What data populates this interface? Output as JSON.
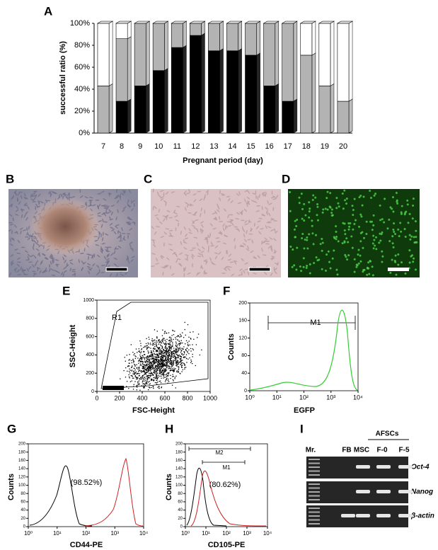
{
  "chart_data": [
    {
      "type": "bar",
      "stacked": true,
      "panel": "A",
      "ylabel": "successful ratio (%)",
      "xlabel": "Pregnant period (day)",
      "categories": [
        "7",
        "8",
        "9",
        "10",
        "11",
        "12",
        "13",
        "14",
        "15",
        "16",
        "17",
        "18",
        "19",
        "20"
      ],
      "series": [
        {
          "color": "#000000",
          "values": [
            0,
            29,
            43,
            57,
            78,
            89,
            75,
            75,
            71,
            43,
            29,
            0,
            0,
            0
          ]
        },
        {
          "color": "#b3b3b3",
          "values": [
            43,
            57,
            57,
            43,
            22,
            11,
            25,
            25,
            29,
            57,
            71,
            71,
            43,
            29
          ]
        },
        {
          "color": "#ffffff",
          "values": [
            57,
            14,
            0,
            0,
            0,
            0,
            0,
            0,
            0,
            0,
            0,
            29,
            57,
            71
          ]
        }
      ],
      "ylim": [
        0,
        100
      ],
      "yticks": [
        {
          "value": 0,
          "label": "0%"
        },
        {
          "value": 20,
          "label": "20%"
        },
        {
          "value": 40,
          "label": "40%"
        },
        {
          "value": 60,
          "label": "60%"
        },
        {
          "value": 80,
          "label": "80%"
        },
        {
          "value": 100,
          "label": "100%"
        }
      ]
    },
    {
      "type": "scatter",
      "panel": "E",
      "xlabel": "FSC-Height",
      "ylabel": "SSC-Height",
      "annotations": [
        "R1"
      ],
      "xlim": [
        0,
        1000
      ],
      "xticks": [
        0,
        200,
        400,
        600,
        800,
        1000
      ],
      "ylim": [
        0,
        1000
      ],
      "yticks": [
        0,
        200,
        400,
        600,
        800,
        1000
      ]
    },
    {
      "type": "histogram",
      "panel": "F",
      "xlabel": "EGFP",
      "ylabel": "Counts",
      "annotations": [
        "M1"
      ],
      "log_x": true,
      "color": "#33cc33",
      "xlim": [
        1,
        10000
      ],
      "xticks": [
        {
          "value": 1,
          "label": "10⁰"
        },
        {
          "value": 10,
          "label": "10¹"
        },
        {
          "value": 100,
          "label": "10²"
        },
        {
          "value": 1000,
          "label": "10³"
        },
        {
          "value": 10000,
          "label": "10⁴"
        }
      ],
      "ylim": [
        0,
        200
      ],
      "yticks": [
        0,
        40,
        80,
        120,
        160,
        200
      ]
    },
    {
      "type": "histogram",
      "panel": "G",
      "xlabel": "CD44-PE",
      "ylabel": "Counts",
      "annotations": [
        "(98.52%)"
      ],
      "log_x": true,
      "color": "#cc2222",
      "xlim": [
        1,
        10000
      ],
      "xticks": [
        {
          "value": 1,
          "label": "10⁰"
        },
        {
          "value": 10,
          "label": "10¹"
        },
        {
          "value": 100,
          "label": "10²"
        },
        {
          "value": 1000,
          "label": "10³"
        },
        {
          "value": 10000,
          "label": "10⁴"
        }
      ],
      "ylim": [
        0,
        200
      ],
      "yticks": [
        0,
        20,
        40,
        60,
        80,
        100,
        120,
        140,
        160,
        180,
        200
      ]
    },
    {
      "type": "histogram",
      "panel": "H",
      "xlabel": "CD105-PE",
      "ylabel": "Counts",
      "annotations": [
        "M2",
        "M1",
        "(80.62%)"
      ],
      "log_x": true,
      "color": "#cc2222",
      "xlim": [
        1,
        10000
      ],
      "xticks": [
        {
          "value": 1,
          "label": "10⁰"
        },
        {
          "value": 10,
          "label": "10¹"
        },
        {
          "value": 100,
          "label": "10²"
        },
        {
          "value": 1000,
          "label": "10³"
        },
        {
          "value": 10000,
          "label": "10⁴"
        }
      ],
      "ylim": [
        0,
        200
      ],
      "yticks": [
        0,
        20,
        40,
        60,
        80,
        100,
        120,
        140,
        160,
        180,
        200
      ]
    }
  ],
  "images": [
    {
      "panel": "B"
    },
    {
      "panel": "C"
    },
    {
      "panel": "D"
    }
  ],
  "gel": {
    "panel": "I",
    "lanes": [
      "Mr.",
      "FB",
      "MSC",
      "F-0",
      "F-5"
    ],
    "group": "AFSCs",
    "genes": [
      "Oct-4",
      "Nanog",
      "β-actin"
    ]
  }
}
